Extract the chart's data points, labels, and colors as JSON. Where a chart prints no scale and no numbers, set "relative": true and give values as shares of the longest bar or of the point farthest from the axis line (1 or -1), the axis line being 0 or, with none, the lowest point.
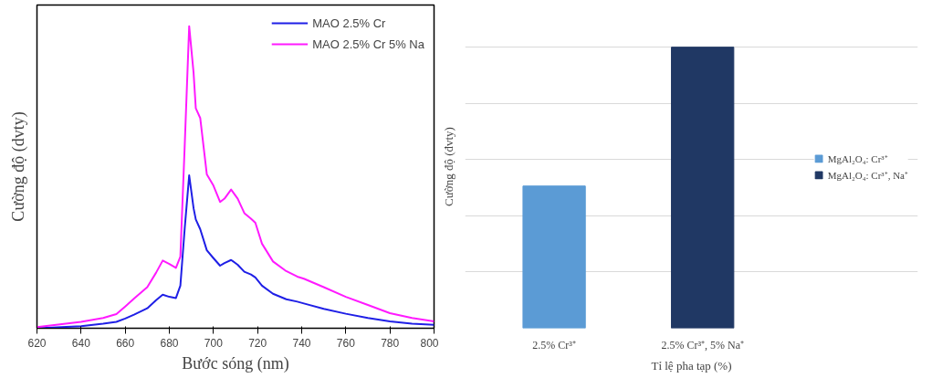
{
  "chart_data": [
    {
      "type": "line",
      "xlabel": "Bước sóng (nm)",
      "ylabel": "Cường độ (dvty)",
      "relative": true,
      "xlim": [
        620,
        800
      ],
      "xticks": [
        620,
        640,
        660,
        680,
        700,
        720,
        740,
        760,
        780,
        800
      ],
      "tick_labels": "x",
      "legend": "top right",
      "grid": false,
      "line_style": "solid",
      "x": [
        620,
        640,
        650,
        656,
        660,
        664,
        670,
        674,
        677,
        680,
        683,
        685,
        687,
        689,
        691,
        692,
        694,
        697,
        700,
        703,
        705,
        708,
        711,
        714,
        717,
        719,
        722,
        727,
        733,
        738,
        741,
        750,
        760,
        770,
        780,
        790,
        800
      ],
      "series": [
        {
          "name": "MAO 2.5% Cr",
          "color": "#1f1fe6",
          "values": [
            0.0,
            0.007,
            0.015,
            0.021,
            0.032,
            0.045,
            0.066,
            0.093,
            0.111,
            0.104,
            0.1,
            0.141,
            0.333,
            0.506,
            0.397,
            0.36,
            0.328,
            0.258,
            0.232,
            0.207,
            0.216,
            0.226,
            0.21,
            0.187,
            0.178,
            0.168,
            0.141,
            0.114,
            0.096,
            0.088,
            0.082,
            0.064,
            0.048,
            0.034,
            0.023,
            0.015,
            0.011
          ]
        },
        {
          "name": "MAO 2.5% Cr 5% Na",
          "color": "#ff1aff",
          "values": [
            0.004,
            0.021,
            0.034,
            0.047,
            0.072,
            0.098,
            0.136,
            0.184,
            0.224,
            0.213,
            0.2,
            0.237,
            0.61,
            1.0,
            0.845,
            0.728,
            0.696,
            0.509,
            0.472,
            0.418,
            0.429,
            0.459,
            0.429,
            0.381,
            0.363,
            0.349,
            0.28,
            0.221,
            0.189,
            0.171,
            0.164,
            0.136,
            0.104,
            0.077,
            0.05,
            0.034,
            0.023
          ]
        }
      ]
    },
    {
      "type": "bar",
      "xlabel": "Tỉ lệ pha tạp (%)",
      "ylabel": "Cường độ (đvty)",
      "relative": true,
      "tick_labels": "x",
      "grid": "y",
      "legend": "right",
      "categories": [
        "2.5% Cr³⁺",
        "2.5% Cr³⁺, 5% Na⁺"
      ],
      "series": [
        {
          "name": "MgAl₂O₄: Cr³⁺",
          "color": "#5b9bd5",
          "values": [
            0.506,
            null
          ]
        },
        {
          "name": "MgAl₂O₄: Cr³⁺, Na⁺",
          "color": "#203864",
          "values": [
            null,
            1.0
          ]
        }
      ]
    }
  ]
}
